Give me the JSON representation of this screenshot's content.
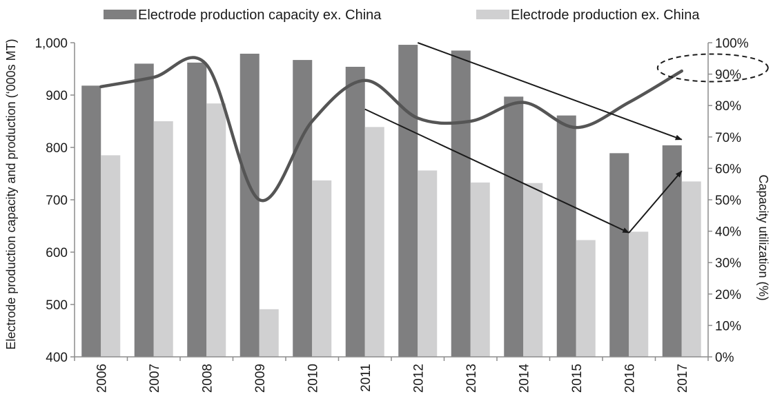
{
  "chart_data": {
    "type": "bar",
    "categories": [
      "2006",
      "2007",
      "2008",
      "2009",
      "2010",
      "2011",
      "2012",
      "2013",
      "2014",
      "2015",
      "2016",
      "2017"
    ],
    "series": [
      {
        "name": "Electrode production capacity ex. China",
        "type": "bar",
        "axis": "left",
        "color": "#7f7f80",
        "values": [
          918,
          960,
          962,
          979,
          967,
          954,
          996,
          985,
          897,
          861,
          789,
          804
        ]
      },
      {
        "name": "Electrode production ex. China",
        "type": "bar",
        "axis": "left",
        "color": "#d0d0d1",
        "values": [
          785,
          850,
          884,
          491,
          737,
          839,
          756,
          733,
          732,
          623,
          639,
          735
        ]
      },
      {
        "name": "",
        "type": "line",
        "axis": "right",
        "color": "#555555",
        "values": [
          86,
          89,
          93,
          50,
          75,
          88,
          76,
          75,
          81,
          73,
          81,
          91
        ]
      }
    ],
    "ylabel": "Electrode production capacity and production (‘000s MT)",
    "ylim": [
      400,
      1000
    ],
    "yticks": [
      "400",
      "500",
      "600",
      "700",
      "800",
      "900",
      "1,000"
    ],
    "y2label": "Capacity utilization (%)",
    "y2lim": [
      0,
      100
    ],
    "y2ticks": [
      "0%",
      "10%",
      "20%",
      "30%",
      "40%",
      "50%",
      "60%",
      "70%",
      "80%",
      "90%",
      "100%"
    ],
    "legend_position": "top",
    "grid": false,
    "annotations": [
      {
        "type": "arrow",
        "from": {
          "category": "2012",
          "value": 1000
        },
        "to": {
          "category": "2017",
          "value": 815
        }
      },
      {
        "type": "arrow",
        "from": {
          "category": "2011",
          "value": 873
        },
        "to": {
          "category": "2016",
          "value": 637
        }
      },
      {
        "type": "arrow",
        "from": {
          "category": "2016",
          "value": 637
        },
        "to": {
          "category": "2017",
          "value": 755
        }
      },
      {
        "type": "dashed-ellipse",
        "around": {
          "category": "2017",
          "axis": "right",
          "value": 92
        }
      }
    ]
  }
}
